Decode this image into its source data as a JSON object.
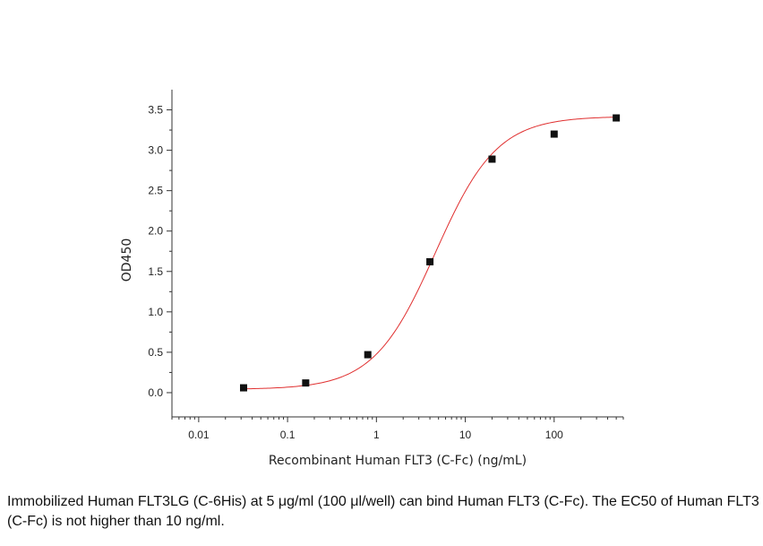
{
  "chart_data": {
    "type": "scatter",
    "xlabel": "Recombinant Human FLT3 (C-Fc) (ng/mL)",
    "ylabel": "OD450",
    "x_scale": "log",
    "xlim": [
      0.005,
      600
    ],
    "ylim": [
      -0.3,
      3.75
    ],
    "x_ticks": [
      {
        "value": 0.01,
        "label": "0.01"
      },
      {
        "value": 0.1,
        "label": "0.1"
      },
      {
        "value": 1,
        "label": "1"
      },
      {
        "value": 10,
        "label": "10"
      },
      {
        "value": 100,
        "label": "100"
      }
    ],
    "y_ticks": [
      {
        "value": 0.0,
        "label": "0.0"
      },
      {
        "value": 0.5,
        "label": "0.5"
      },
      {
        "value": 1.0,
        "label": "1.0"
      },
      {
        "value": 1.5,
        "label": "1.5"
      },
      {
        "value": 2.0,
        "label": "2.0"
      },
      {
        "value": 2.5,
        "label": "2.5"
      },
      {
        "value": 3.0,
        "label": "3.0"
      },
      {
        "value": 3.5,
        "label": "3.5"
      }
    ],
    "series": [
      {
        "x": [
          0.032,
          0.16,
          0.8,
          4,
          20,
          100,
          500
        ],
        "y": [
          0.06,
          0.12,
          0.47,
          1.62,
          2.89,
          3.2,
          3.4
        ]
      }
    ],
    "fit_curve": {
      "model": "four-parameter logistic",
      "color": "#e03030",
      "bottom": 0.04,
      "top": 3.42,
      "ec50": 4.6,
      "hill": 1.25
    },
    "marker_color": "#111111",
    "grid": false,
    "legend": "none"
  },
  "caption": "Immobilized Human FLT3LG (C-6His) at 5 μg/ml (100 μl/well) can bind Human FLT3 (C-Fc). The EC50 of Human FLT3 (C-Fc) is not higher than 10 ng/ml."
}
